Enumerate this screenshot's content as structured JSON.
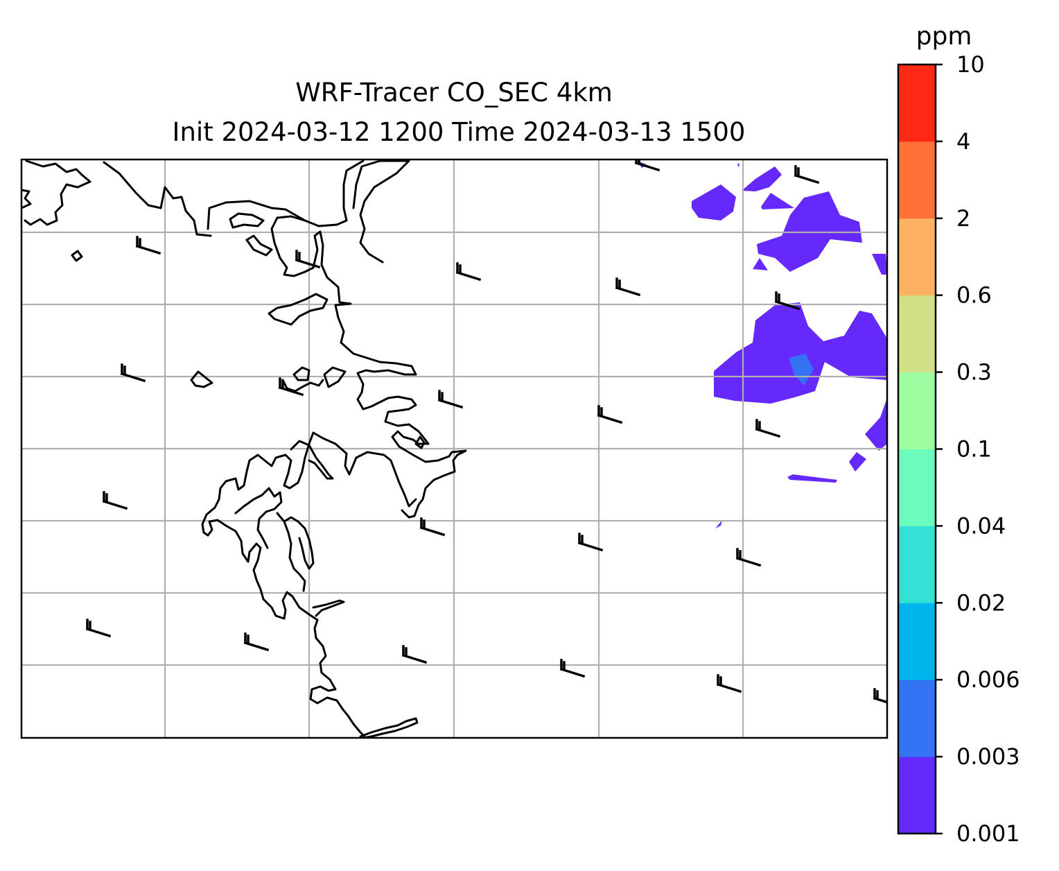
{
  "map": {
    "title_line1": "WRF-Tracer CO_SEC 4km",
    "title_line2": "Init 2024-03-12 1200 Time 2024-03-13 1500",
    "field": "CO_SEC tracer concentration",
    "gridlines": true,
    "colors": {
      "coastline": "#000000",
      "gridline": "#b0b0b0",
      "wind_barb": "#000000"
    }
  },
  "colorbar": {
    "unit": "ppm",
    "levels": [
      "0.001",
      "0.003",
      "0.006",
      "0.02",
      "0.04",
      "0.1",
      "0.3",
      "0.6",
      "2",
      "4",
      "10"
    ],
    "colors": [
      "#6629fb",
      "#3373f3",
      "#00b4ec",
      "#33e1d5",
      "#69fcbb",
      "#9cfea0",
      "#d0e085",
      "#fdb163",
      "#fe7139",
      "#fe2916"
    ]
  }
}
